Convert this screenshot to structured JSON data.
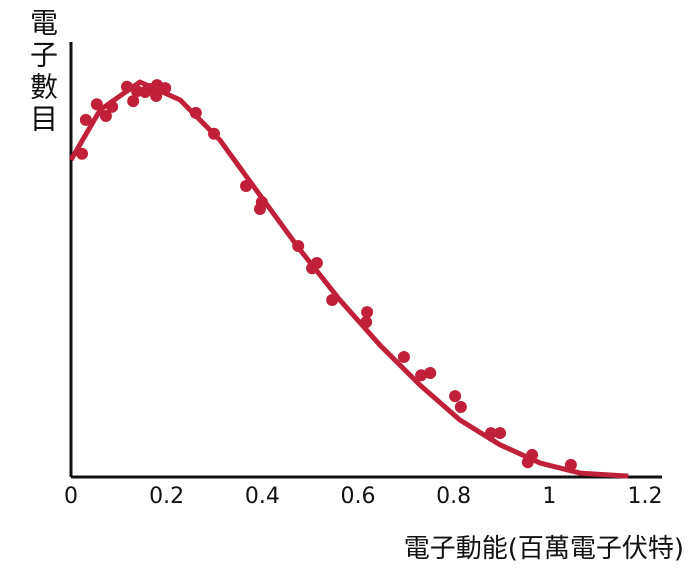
{
  "chart_data": {
    "type": "scatter",
    "x_label": "電子動能(百萬電子伏特)",
    "y_label": "電子數目",
    "color": "#c0203a",
    "xlim": [
      0,
      1.2
    ],
    "xticks": [
      0,
      0.2,
      0.4,
      0.6,
      0.8,
      1.0,
      1.2
    ],
    "ylim": [
      0,
      100
    ],
    "x": [
      0.023,
      0.031,
      0.054,
      0.073,
      0.086,
      0.117,
      0.13,
      0.138,
      0.155,
      0.165,
      0.178,
      0.18,
      0.197,
      0.261,
      0.299,
      0.366,
      0.395,
      0.399,
      0.475,
      0.504,
      0.514,
      0.546,
      0.617,
      0.619,
      0.696,
      0.732,
      0.751,
      0.803,
      0.815,
      0.878,
      0.897,
      0.955,
      0.964,
      1.045
    ],
    "values": [
      74.3,
      82.1,
      85.7,
      83.0,
      85.1,
      89.7,
      86.4,
      88.7,
      88.5,
      89.2,
      87.6,
      90.1,
      89.4,
      83.7,
      78.9,
      66.9,
      61.6,
      63.2,
      53.1,
      48.0,
      49.2,
      40.7,
      35.6,
      37.9,
      27.6,
      23.4,
      23.9,
      18.6,
      16.1,
      10.1,
      10.1,
      3.4,
      5.1,
      2.8
    ],
    "curve": {
      "x": [
        0,
        0.061,
        0.144,
        0.228,
        0.311,
        0.395,
        0.479,
        0.562,
        0.646,
        0.73,
        0.813,
        0.897,
        0.981,
        1.064,
        1.165
      ],
      "values": [
        72.9,
        84.4,
        90.8,
        86.7,
        77.5,
        64.8,
        52.2,
        40.7,
        30.3,
        21.1,
        13.1,
        7.4,
        3.2,
        0.9,
        0.2
      ]
    }
  }
}
